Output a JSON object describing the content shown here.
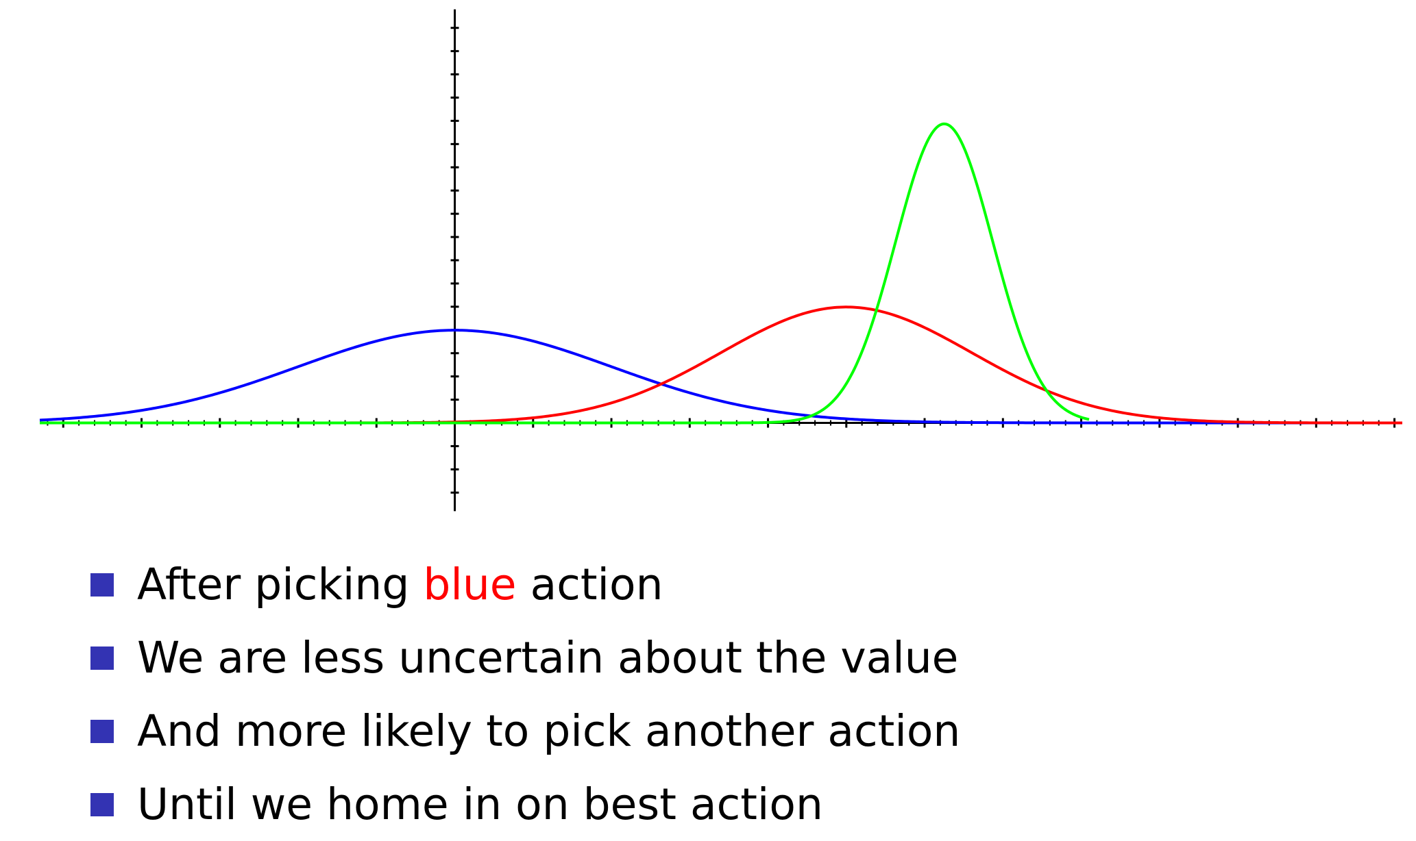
{
  "chart_data": {
    "type": "line",
    "title": "",
    "xlabel": "",
    "ylabel": "",
    "xlim": [
      -5.3,
      12.1
    ],
    "ylim": [
      -0.21,
      0.91
    ],
    "axes": {
      "x_minor_tick": 0.2,
      "x_major_tick": 1,
      "y_tick": 0.05,
      "grid": false,
      "tick_labels": false
    },
    "series": [
      {
        "color": "#0000ff",
        "distribution": "normal",
        "mean": 0,
        "sd": 2.0,
        "x_range": [
          -5.3,
          12.1
        ]
      },
      {
        "color": "#ff0000",
        "distribution": "normal",
        "mean": 5,
        "sd": 1.6,
        "x_range": [
          -5.3,
          12.1
        ]
      },
      {
        "color": "#00ff00",
        "distribution": "normal",
        "mean": 6.25,
        "sd": 0.62,
        "x_range": [
          -5.3,
          8.1
        ]
      }
    ]
  },
  "bullets": [
    {
      "before": "After picking ",
      "highlight": "blue",
      "after": " action"
    },
    {
      "before": "We are less uncertain about the value",
      "highlight": "",
      "after": ""
    },
    {
      "before": "And more likely to pick another action",
      "highlight": "",
      "after": ""
    },
    {
      "before": "Until we home in on best action",
      "highlight": "",
      "after": ""
    }
  ],
  "colors": {
    "bullet_square": "#3333b3",
    "highlight_text": "#ff0000",
    "text": "#000000"
  }
}
